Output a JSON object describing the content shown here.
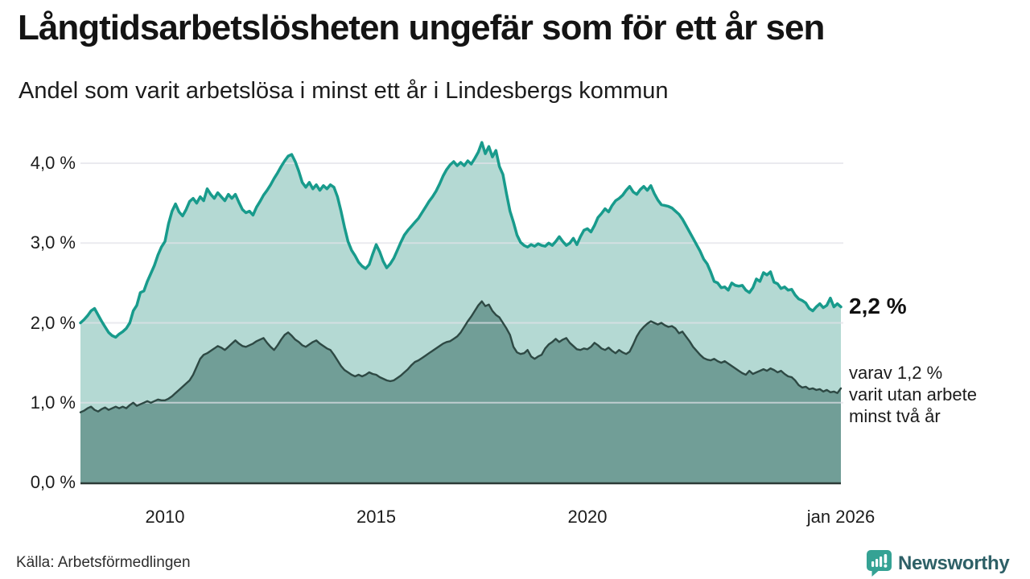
{
  "header": {
    "title": "Långtidsarbetslösheten ungefär som för ett år sen",
    "subtitle": "Andel som varit arbetslösa i minst ett år i Lindesbergs kommun"
  },
  "annotations": {
    "end_value": "2,2 %",
    "note_line1": "varav 1,2 %",
    "note_line2": "varit utan arbete",
    "note_line3": "minst två år"
  },
  "footer": {
    "source": "Källa: Arbetsförmedlingen",
    "brand": "Newsworthy"
  },
  "colors": {
    "teal_line": "#189b8c",
    "light_fill": "#b4d9d3",
    "dark_fill": "#719e97",
    "dark_line": "#2e4944",
    "gridline": "#e2e2e9",
    "axis_line": "#2c3a37",
    "brand_teal": "#35a294",
    "brand_text": "#2e6067"
  },
  "chart_data": {
    "type": "area",
    "title": "Långtidsarbetslösheten ungefär som för ett år sen",
    "subtitle": "Andel som varit arbetslösa i minst ett år i Lindesbergs kommun",
    "unit": "%",
    "frequency": "monthly",
    "x_start": "2008-01",
    "x_end": "2026-01",
    "ylim": [
      0,
      4.3
    ],
    "grid": true,
    "legend_position": "none",
    "yticks": [
      {
        "label": "4,0 %",
        "value": 4.0
      },
      {
        "label": "3,0 %",
        "value": 3.0
      },
      {
        "label": "2,0 %",
        "value": 2.0
      },
      {
        "label": "1,0 %",
        "value": 1.0
      },
      {
        "label": "0,0 %",
        "value": 0.0
      }
    ],
    "xticks": [
      {
        "label": "2010",
        "month_index": 24
      },
      {
        "label": "2015",
        "month_index": 84
      },
      {
        "label": "2020",
        "month_index": 144
      },
      {
        "label": "jan 2026",
        "month_index": 216
      }
    ],
    "series": [
      {
        "name": "Arbetslösa minst ett år",
        "end_value": 2.2,
        "end_label": "2,2 %",
        "values": [
          2.0,
          2.04,
          2.09,
          2.15,
          2.18,
          2.1,
          2.02,
          1.95,
          1.88,
          1.84,
          1.82,
          1.86,
          1.89,
          1.93,
          2.0,
          2.15,
          2.22,
          2.38,
          2.4,
          2.52,
          2.62,
          2.72,
          2.85,
          2.95,
          3.02,
          3.24,
          3.4,
          3.49,
          3.39,
          3.34,
          3.42,
          3.52,
          3.56,
          3.5,
          3.58,
          3.53,
          3.68,
          3.61,
          3.56,
          3.63,
          3.58,
          3.53,
          3.61,
          3.56,
          3.61,
          3.51,
          3.42,
          3.38,
          3.4,
          3.35,
          3.45,
          3.52,
          3.6,
          3.66,
          3.73,
          3.81,
          3.88,
          3.96,
          4.03,
          4.09,
          4.11,
          4.02,
          3.9,
          3.76,
          3.7,
          3.76,
          3.68,
          3.73,
          3.66,
          3.72,
          3.68,
          3.73,
          3.7,
          3.58,
          3.4,
          3.2,
          3.02,
          2.91,
          2.84,
          2.76,
          2.71,
          2.68,
          2.73,
          2.86,
          2.98,
          2.89,
          2.77,
          2.69,
          2.74,
          2.81,
          2.91,
          3.01,
          3.1,
          3.16,
          3.21,
          3.26,
          3.31,
          3.38,
          3.45,
          3.52,
          3.58,
          3.65,
          3.74,
          3.84,
          3.92,
          3.98,
          4.02,
          3.97,
          4.01,
          3.97,
          4.03,
          3.99,
          4.06,
          4.14,
          4.26,
          4.12,
          4.21,
          4.08,
          4.16,
          3.96,
          3.86,
          3.62,
          3.4,
          3.26,
          3.1,
          3.01,
          2.97,
          2.95,
          2.98,
          2.96,
          2.99,
          2.97,
          2.96,
          3.0,
          2.97,
          3.02,
          3.08,
          3.02,
          2.97,
          3.0,
          3.06,
          2.98,
          3.08,
          3.16,
          3.18,
          3.14,
          3.22,
          3.32,
          3.37,
          3.43,
          3.39,
          3.47,
          3.53,
          3.56,
          3.6,
          3.66,
          3.71,
          3.64,
          3.61,
          3.67,
          3.71,
          3.66,
          3.72,
          3.62,
          3.54,
          3.48,
          3.47,
          3.46,
          3.44,
          3.4,
          3.36,
          3.3,
          3.22,
          3.14,
          3.06,
          2.98,
          2.9,
          2.8,
          2.74,
          2.64,
          2.52,
          2.5,
          2.44,
          2.45,
          2.41,
          2.5,
          2.47,
          2.46,
          2.47,
          2.41,
          2.38,
          2.44,
          2.55,
          2.52,
          2.63,
          2.6,
          2.64,
          2.51,
          2.49,
          2.43,
          2.45,
          2.41,
          2.42,
          2.35,
          2.3,
          2.28,
          2.25,
          2.18,
          2.15,
          2.2,
          2.24,
          2.19,
          2.22,
          2.31,
          2.2,
          2.24,
          2.2
        ]
      },
      {
        "name": "Arbetslösa minst två år",
        "end_value": 1.2,
        "end_label": "varav 1,2 % varit utan arbete minst två år",
        "values": [
          0.88,
          0.9,
          0.93,
          0.95,
          0.91,
          0.89,
          0.92,
          0.94,
          0.91,
          0.93,
          0.95,
          0.93,
          0.95,
          0.93,
          0.97,
          1.0,
          0.96,
          0.98,
          1.0,
          1.02,
          1.0,
          1.02,
          1.04,
          1.03,
          1.03,
          1.05,
          1.08,
          1.12,
          1.16,
          1.2,
          1.24,
          1.28,
          1.35,
          1.45,
          1.55,
          1.6,
          1.62,
          1.65,
          1.68,
          1.71,
          1.69,
          1.66,
          1.7,
          1.74,
          1.78,
          1.74,
          1.71,
          1.7,
          1.72,
          1.74,
          1.77,
          1.79,
          1.81,
          1.75,
          1.7,
          1.66,
          1.72,
          1.79,
          1.85,
          1.88,
          1.84,
          1.79,
          1.76,
          1.72,
          1.7,
          1.73,
          1.76,
          1.78,
          1.74,
          1.71,
          1.68,
          1.66,
          1.6,
          1.53,
          1.46,
          1.41,
          1.38,
          1.35,
          1.33,
          1.35,
          1.33,
          1.35,
          1.38,
          1.36,
          1.35,
          1.32,
          1.3,
          1.28,
          1.27,
          1.28,
          1.31,
          1.34,
          1.38,
          1.42,
          1.47,
          1.51,
          1.53,
          1.56,
          1.59,
          1.62,
          1.65,
          1.68,
          1.71,
          1.74,
          1.76,
          1.77,
          1.8,
          1.83,
          1.88,
          1.95,
          2.02,
          2.08,
          2.15,
          2.22,
          2.27,
          2.21,
          2.23,
          2.15,
          2.1,
          2.07,
          2.0,
          1.93,
          1.85,
          1.7,
          1.63,
          1.61,
          1.62,
          1.66,
          1.58,
          1.55,
          1.58,
          1.6,
          1.68,
          1.73,
          1.76,
          1.8,
          1.76,
          1.79,
          1.81,
          1.75,
          1.71,
          1.67,
          1.66,
          1.68,
          1.67,
          1.7,
          1.75,
          1.72,
          1.68,
          1.66,
          1.69,
          1.65,
          1.62,
          1.66,
          1.63,
          1.61,
          1.64,
          1.73,
          1.83,
          1.9,
          1.95,
          1.99,
          2.02,
          2.0,
          1.98,
          2.0,
          1.97,
          1.95,
          1.96,
          1.93,
          1.87,
          1.89,
          1.83,
          1.77,
          1.7,
          1.65,
          1.6,
          1.56,
          1.54,
          1.53,
          1.55,
          1.52,
          1.5,
          1.52,
          1.49,
          1.46,
          1.43,
          1.4,
          1.37,
          1.35,
          1.4,
          1.36,
          1.38,
          1.4,
          1.42,
          1.4,
          1.43,
          1.41,
          1.38,
          1.4,
          1.36,
          1.33,
          1.32,
          1.28,
          1.22,
          1.19,
          1.2,
          1.17,
          1.18,
          1.16,
          1.17,
          1.14,
          1.16,
          1.13,
          1.14,
          1.12,
          1.18
        ]
      }
    ]
  }
}
